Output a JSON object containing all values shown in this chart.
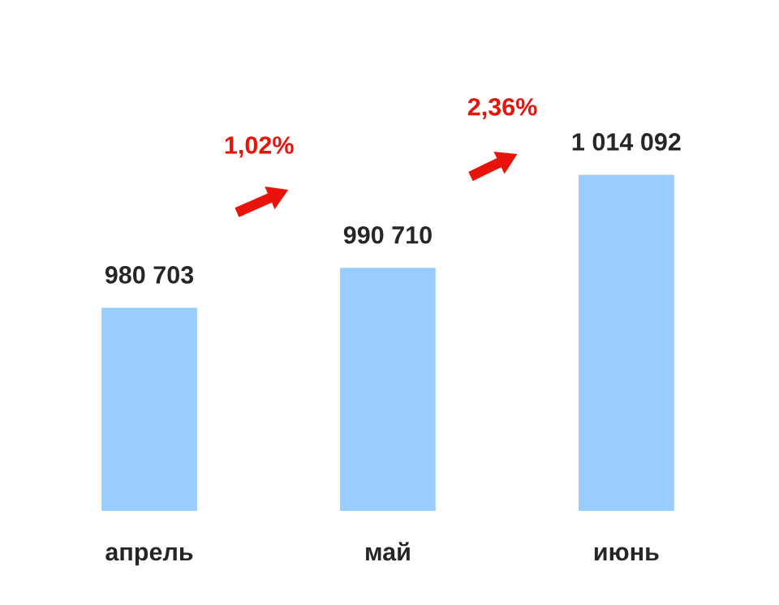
{
  "chart_data": {
    "type": "bar",
    "categories": [
      "апрель",
      "май",
      "июнь"
    ],
    "values": [
      980703,
      990710,
      1014092
    ],
    "color": "#99ccff",
    "value_labels": [
      "980 703",
      "990 710",
      "1 014 092"
    ],
    "tick_labels": "x",
    "grid": false,
    "annotations": [
      "1,02%",
      "2,36%"
    ]
  }
}
